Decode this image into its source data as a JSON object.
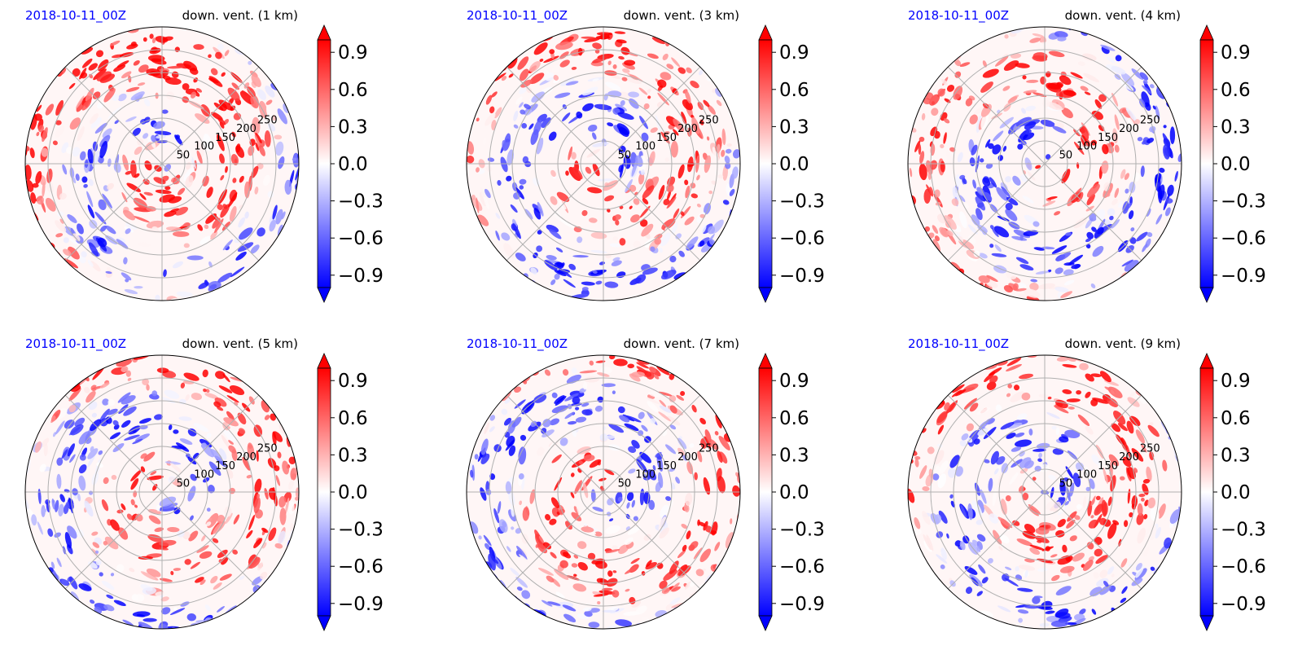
{
  "chart_data": {
    "type": "heatmap",
    "projection": "polar",
    "colormap": "bwr",
    "color_min": "#0000ff",
    "color_mid": "#ffffff",
    "color_max": "#ff0000",
    "color_levels": [
      -1.0,
      1.0
    ],
    "colorbar_extend": "both",
    "colorbar_ticks": [
      "0.9",
      "0.6",
      "0.3",
      "0.0",
      "−0.3",
      "−0.6",
      "−0.9"
    ],
    "radial_ticks": [
      "50",
      "100",
      "150",
      "200",
      "250"
    ],
    "radial_range": [
      0,
      300
    ],
    "grid": true,
    "panels": [
      {
        "date": "2018-10-11_00Z",
        "title": "down. vent. (1 km)",
        "seed": 11,
        "bias": 0.25
      },
      {
        "date": "2018-10-11_00Z",
        "title": "down. vent. (3 km)",
        "seed": 23,
        "bias": 0.05
      },
      {
        "date": "2018-10-11_00Z",
        "title": "down. vent. (4 km)",
        "seed": 37,
        "bias": 0.0
      },
      {
        "date": "2018-10-11_00Z",
        "title": "down. vent. (5 km)",
        "seed": 41,
        "bias": 0.1
      },
      {
        "date": "2018-10-11_00Z",
        "title": "down. vent. (7 km)",
        "seed": 53,
        "bias": 0.1
      },
      {
        "date": "2018-10-11_00Z",
        "title": "down. vent. (9 km)",
        "seed": 67,
        "bias": 0.15
      }
    ]
  }
}
